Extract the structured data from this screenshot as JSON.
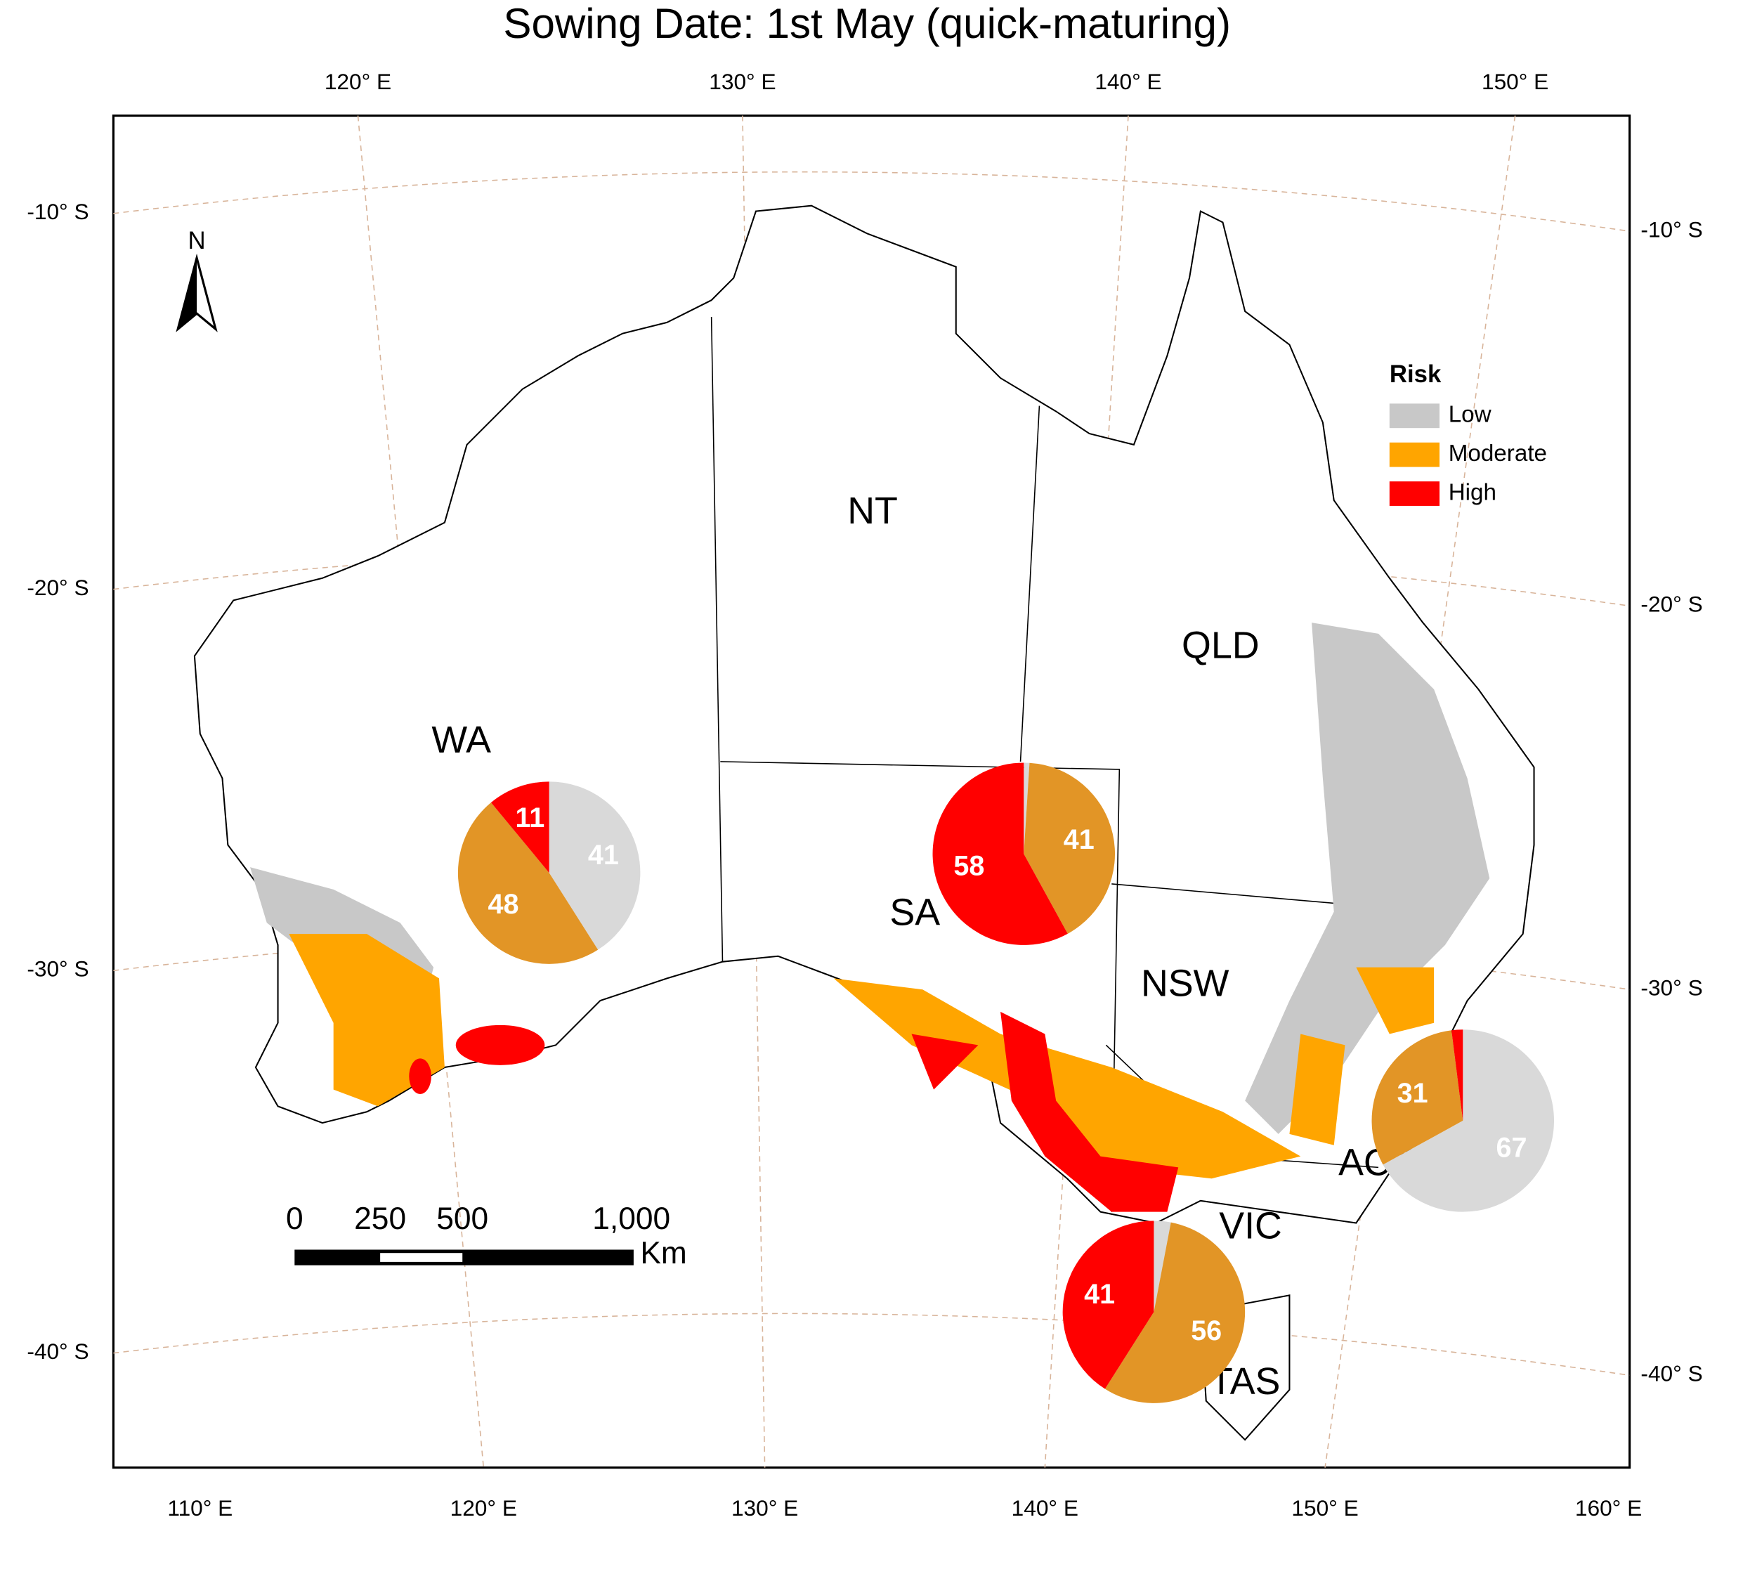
{
  "title": "Sowing Date: 1st May (quick-maturing)",
  "map": {
    "lon_top": [
      "120° E",
      "130° E",
      "140° E",
      "150° E"
    ],
    "lon_bottom": [
      "110° E",
      "120° E",
      "130° E",
      "140° E",
      "150° E",
      "160° E"
    ],
    "lat_left": [
      "-10° S",
      "-20° S",
      "-30° S",
      "-40° S"
    ],
    "lat_right": [
      "-10° S",
      "-20° S",
      "-30° S",
      "-40° S"
    ],
    "north": "N",
    "regions": [
      "NT",
      "QLD",
      "WA",
      "SA",
      "NSW",
      "ACT",
      "VIC",
      "TAS"
    ],
    "legend": {
      "title": "Risk",
      "items": [
        {
          "name": "Low",
          "color": "#c8c8c8"
        },
        {
          "name": "Moderate",
          "color": "#ffa500"
        },
        {
          "name": "High",
          "color": "#ff0000"
        }
      ]
    },
    "scale_bar": {
      "labels": [
        "0",
        "250",
        "500",
        "1,000"
      ],
      "unit": "Km"
    }
  },
  "chart_data": [
    {
      "type": "pie",
      "categories": [
        "Low",
        "Moderate",
        "High"
      ],
      "values": [
        41,
        48,
        11
      ],
      "colors": [
        "#d9d9d9",
        "#e29526",
        "#ff0000"
      ]
    },
    {
      "type": "pie",
      "categories": [
        "Low",
        "Moderate",
        "High"
      ],
      "values": [
        1,
        41,
        58
      ],
      "colors": [
        "#d9d9d9",
        "#e29526",
        "#ff0000"
      ]
    },
    {
      "type": "pie",
      "categories": [
        "Low",
        "Moderate",
        "High"
      ],
      "values": [
        3,
        56,
        41
      ],
      "colors": [
        "#d9d9d9",
        "#e29526",
        "#ff0000"
      ]
    },
    {
      "type": "pie",
      "categories": [
        "Low",
        "Moderate",
        "High"
      ],
      "values": [
        67,
        31,
        2
      ],
      "colors": [
        "#d9d9d9",
        "#e29526",
        "#ff0000"
      ]
    }
  ]
}
